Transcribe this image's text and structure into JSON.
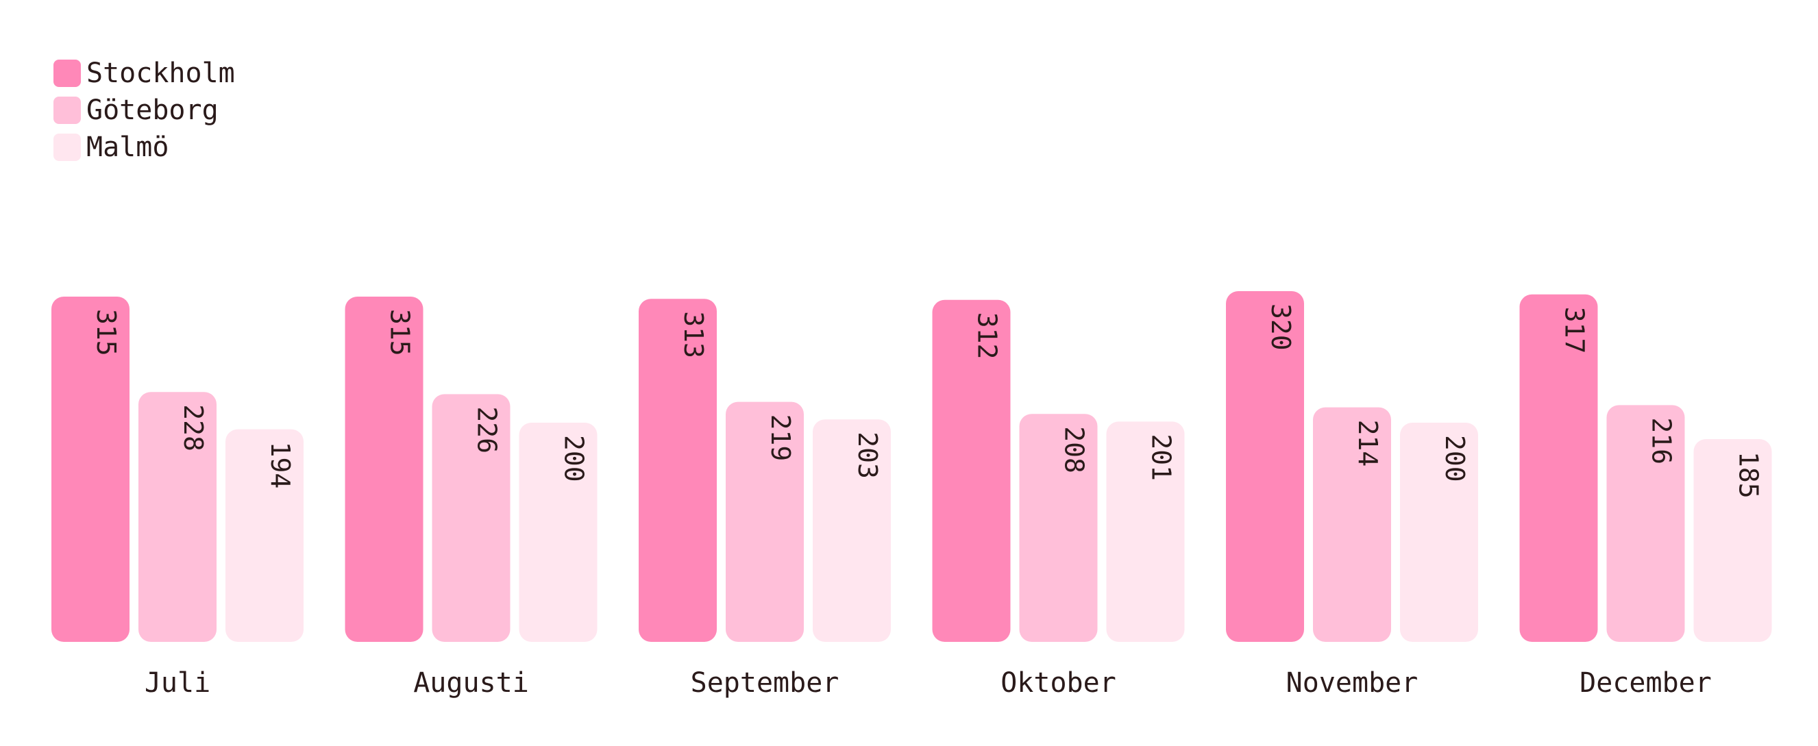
{
  "chart_data": {
    "type": "bar",
    "categories": [
      "Juli",
      "Augusti",
      "September",
      "Oktober",
      "November",
      "December"
    ],
    "series": [
      {
        "name": "Stockholm",
        "color": "#ff88b8",
        "values": [
          315,
          315,
          313,
          312,
          320,
          317
        ]
      },
      {
        "name": "Göteborg",
        "color": "#ffbfd9",
        "values": [
          228,
          226,
          219,
          208,
          214,
          216
        ]
      },
      {
        "name": "Malmö",
        "color": "#ffe6ef",
        "values": [
          194,
          200,
          203,
          201,
          200,
          185
        ]
      }
    ],
    "title": "",
    "xlabel": "",
    "ylabel": "",
    "ylim": [
      0,
      320
    ],
    "grid": false,
    "legend_position": "top-left",
    "value_labels": "vertical, inside top of bar"
  }
}
